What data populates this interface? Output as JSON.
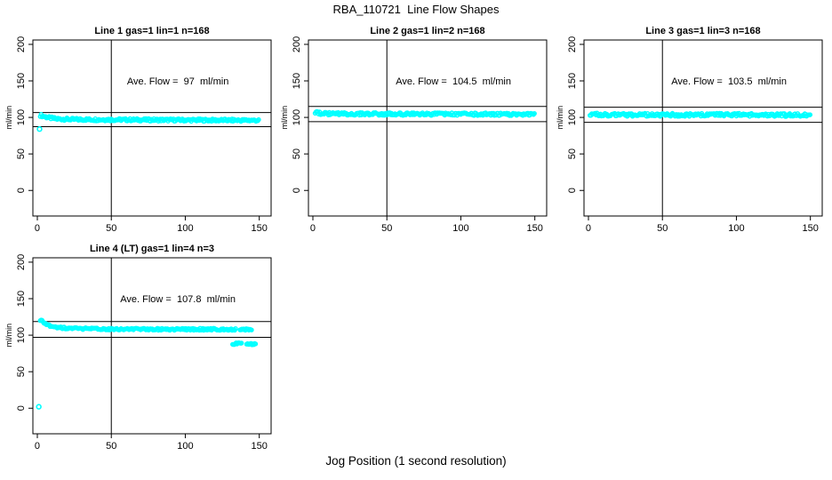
{
  "page": {
    "title": "RBA_110721  Line Flow Shapes",
    "x_axis_label": "Jog Position (1 second resolution)"
  },
  "colors": {
    "points": "#00ffff",
    "axis": "#000000",
    "background": "#ffffff"
  },
  "chart_data": [
    {
      "type": "scatter",
      "title": "Line 1 gas=1 lin=1 n=168",
      "ylabel": "ml/min",
      "n": 168,
      "ave_flow_ml_min": 97,
      "annotation": "Ave. Flow =  97  ml/min",
      "annotation_xy": [
        95,
        150
      ],
      "x_ticks": [
        0,
        50,
        100,
        150
      ],
      "y_ticks": [
        0,
        50,
        100,
        150,
        200
      ],
      "xlim": [
        -3,
        158
      ],
      "ylim": [
        -35,
        206
      ],
      "grid": false,
      "vline_x": 50,
      "hlines": [
        106.7,
        87.3
      ],
      "bands": [
        {
          "x_start": 2,
          "x_end": 150,
          "step": 0.6,
          "jitter": 1.8,
          "profile": [
            [
              2,
              103
            ],
            [
              3,
              102.5
            ],
            [
              5,
              101
            ],
            [
              8,
              99.5
            ],
            [
              13,
              98
            ],
            [
              25,
              97.2
            ],
            [
              60,
              96.8
            ],
            [
              110,
              96.3
            ],
            [
              150,
              96
            ]
          ]
        }
      ],
      "outliers": [
        [
          1.5,
          84
        ]
      ]
    },
    {
      "type": "scatter",
      "title": "Line 2 gas=1 lin=2 n=168",
      "ylabel": "ml/min",
      "n": 168,
      "ave_flow_ml_min": 104.5,
      "annotation": "Ave. Flow =  104.5  ml/min",
      "annotation_xy": [
        95,
        150
      ],
      "x_ticks": [
        0,
        50,
        100,
        150
      ],
      "y_ticks": [
        0,
        50,
        100,
        150,
        200
      ],
      "xlim": [
        -3,
        158
      ],
      "ylim": [
        -35,
        206
      ],
      "grid": false,
      "vline_x": 50,
      "hlines": [
        115.0,
        94.1
      ],
      "bands": [
        {
          "x_start": 1.5,
          "x_end": 150,
          "step": 0.6,
          "jitter": 1.9,
          "profile": [
            [
              1.5,
              106.8
            ],
            [
              4,
              106
            ],
            [
              8,
              105.2
            ],
            [
              20,
              104.8
            ],
            [
              60,
              104.5
            ],
            [
              110,
              104.5
            ],
            [
              150,
              104.2
            ]
          ]
        }
      ],
      "outliers": []
    },
    {
      "type": "scatter",
      "title": "Line 3 gas=1 lin=3 n=168",
      "ylabel": "ml/min",
      "n": 168,
      "ave_flow_ml_min": 103.5,
      "annotation": "Ave. Flow =  103.5  ml/min",
      "annotation_xy": [
        95,
        150
      ],
      "x_ticks": [
        0,
        50,
        100,
        150
      ],
      "y_ticks": [
        0,
        50,
        100,
        150,
        200
      ],
      "xlim": [
        -3,
        158
      ],
      "ylim": [
        -35,
        206
      ],
      "grid": false,
      "vline_x": 50,
      "hlines": [
        113.9,
        93.2
      ],
      "bands": [
        {
          "x_start": 1,
          "x_end": 150,
          "step": 0.6,
          "jitter": 2.1,
          "profile": [
            [
              1,
              104.5
            ],
            [
              5,
              104
            ],
            [
              12,
              103.6
            ],
            [
              50,
              103.5
            ],
            [
              90,
              103.7
            ],
            [
              130,
              103.4
            ],
            [
              150,
              103
            ]
          ]
        }
      ],
      "outliers": []
    },
    {
      "type": "scatter",
      "title": "Line 4 (LT) gas=1 lin=4 n=3",
      "ylabel": "ml/min",
      "n": 3,
      "ave_flow_ml_min": 107.8,
      "annotation": "Ave. Flow =  107.8  ml/min",
      "annotation_xy": [
        95,
        150
      ],
      "x_ticks": [
        0,
        50,
        100,
        150
      ],
      "y_ticks": [
        0,
        50,
        100,
        150,
        200
      ],
      "xlim": [
        -3,
        158
      ],
      "ylim": [
        -35,
        206
      ],
      "grid": false,
      "vline_x": 50,
      "hlines": [
        118.6,
        97.0
      ],
      "bands": [
        {
          "x_start": 2,
          "x_end": 134,
          "step": 0.6,
          "jitter": 1.4,
          "profile": [
            [
              2,
              120.5
            ],
            [
              3,
              119.5
            ],
            [
              4,
              118
            ],
            [
              6,
              115.5
            ],
            [
              9,
              113
            ],
            [
              13,
              111
            ],
            [
              19,
              109.8
            ],
            [
              28,
              109
            ],
            [
              45,
              108.5
            ],
            [
              80,
              108.2
            ],
            [
              134,
              108
            ]
          ]
        },
        {
          "x_start": 137,
          "x_end": 145,
          "step": 0.6,
          "jitter": 1.3,
          "profile": [
            [
              137,
              108
            ],
            [
              145,
              108
            ]
          ]
        },
        {
          "x_start": 132,
          "x_end": 138,
          "step": 0.6,
          "jitter": 1.3,
          "profile": [
            [
              132,
              88.5
            ],
            [
              138,
              88.5
            ]
          ]
        },
        {
          "x_start": 141.5,
          "x_end": 147.5,
          "step": 0.6,
          "jitter": 1.3,
          "profile": [
            [
              141.5,
              87.8
            ],
            [
              147.5,
              87.8
            ]
          ]
        }
      ],
      "outliers": [
        [
          1,
          2
        ]
      ]
    }
  ]
}
